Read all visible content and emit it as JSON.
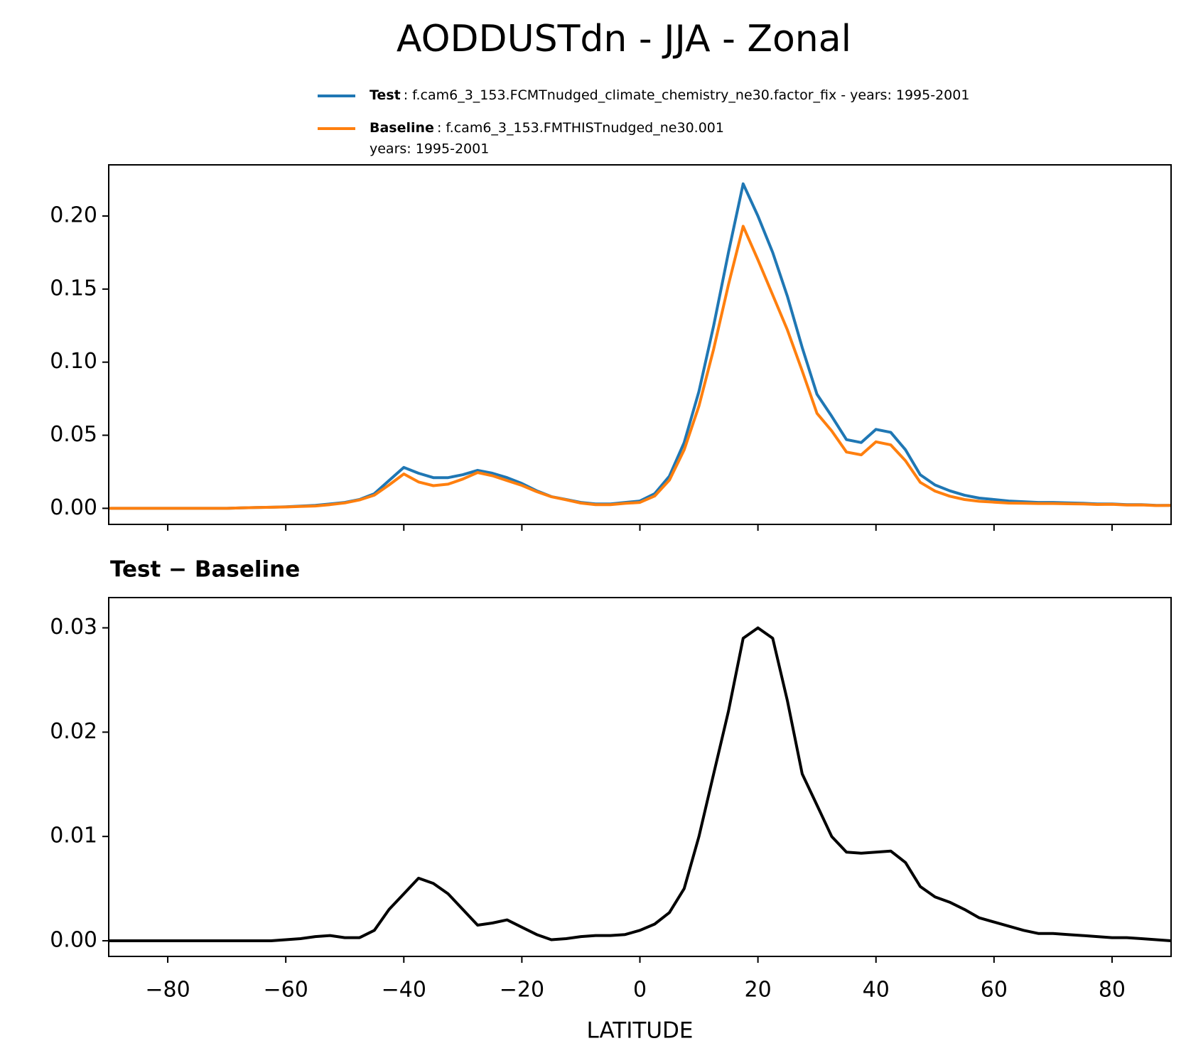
{
  "title": "AODDUSTdn - JJA - Zonal",
  "chart_data": [
    {
      "type": "line",
      "x": [
        -90,
        -87.5,
        -85,
        -82.5,
        -80,
        -77.5,
        -75,
        -72.5,
        -70,
        -67.5,
        -65,
        -62.5,
        -60,
        -57.5,
        -55,
        -52.5,
        -50,
        -47.5,
        -45,
        -42.5,
        -40,
        -37.5,
        -35,
        -32.5,
        -30,
        -27.5,
        -25,
        -22.5,
        -20,
        -17.5,
        -15,
        -12.5,
        -10,
        -7.5,
        -5,
        -2.5,
        0,
        2.5,
        5,
        7.5,
        10,
        12.5,
        15,
        17.5,
        20,
        22.5,
        25,
        27.5,
        30,
        32.5,
        35,
        37.5,
        40,
        42.5,
        45,
        47.5,
        50,
        52.5,
        55,
        57.5,
        60,
        62.5,
        65,
        67.5,
        70,
        72.5,
        75,
        77.5,
        80,
        82.5,
        85,
        87.5,
        90
      ],
      "series": [
        {
          "name": "Test",
          "description": [
            ": f.cam6_3_153.FCMTnudged_climate_chemistry_ne30.factor_fix - years: 1995-2001"
          ],
          "color": "#1f77b4",
          "values": [
            0,
            0,
            0,
            0,
            0,
            0,
            0,
            0,
            0,
            0.0003,
            0.0005,
            0.0007,
            0.001,
            0.0015,
            0.002,
            0.003,
            0.004,
            0.006,
            0.01,
            0.019,
            0.028,
            0.024,
            0.021,
            0.021,
            0.023,
            0.026,
            0.024,
            0.021,
            0.017,
            0.012,
            0.008,
            0.006,
            0.004,
            0.003,
            0.003,
            0.004,
            0.005,
            0.01,
            0.022,
            0.045,
            0.08,
            0.125,
            0.175,
            0.222,
            0.2,
            0.175,
            0.145,
            0.11,
            0.078,
            0.063,
            0.047,
            0.045,
            0.054,
            0.052,
            0.04,
            0.023,
            0.016,
            0.012,
            0.009,
            0.007,
            0.006,
            0.005,
            0.0045,
            0.004,
            0.004,
            0.0037,
            0.0035,
            0.003,
            0.003,
            0.0025,
            0.0025,
            0.002,
            0.002
          ]
        },
        {
          "name": "Baseline",
          "description": [
            ": f.cam6_3_153.FMTHISTnudged_ne30.001",
            "years: 1995-2001"
          ],
          "color": "#ff7f0e",
          "values": [
            0,
            0,
            0,
            0,
            0,
            0,
            0,
            0,
            0,
            0.0003,
            0.0005,
            0.0007,
            0.0009,
            0.0013,
            0.0016,
            0.0025,
            0.0037,
            0.0057,
            0.009,
            0.016,
            0.0235,
            0.018,
            0.0155,
            0.0165,
            0.02,
            0.0245,
            0.0223,
            0.019,
            0.0157,
            0.0114,
            0.0079,
            0.0058,
            0.0036,
            0.0025,
            0.0025,
            0.0034,
            0.004,
            0.0084,
            0.0193,
            0.04,
            0.07,
            0.109,
            0.153,
            0.193,
            0.17,
            0.146,
            0.122,
            0.094,
            0.065,
            0.053,
            0.0385,
            0.0366,
            0.0455,
            0.0434,
            0.0325,
            0.0178,
            0.0118,
            0.0083,
            0.006,
            0.0048,
            0.0042,
            0.0036,
            0.0035,
            0.0033,
            0.0033,
            0.0031,
            0.003,
            0.0026,
            0.0027,
            0.0022,
            0.0023,
            0.0019,
            0.002
          ]
        }
      ],
      "xlim": [
        -90,
        90
      ],
      "xticks": [
        -80,
        -60,
        -40,
        -20,
        0,
        20,
        40,
        60,
        80
      ],
      "ylim": [
        -0.011,
        0.235
      ],
      "yticks": [
        {
          "value": 0,
          "label": "0.00"
        },
        0.05,
        {
          "value": 0.1,
          "label": "0.10"
        },
        0.15,
        {
          "value": 0.2,
          "label": "0.20"
        }
      ]
    },
    {
      "type": "line",
      "title": "Test − Baseline",
      "xlabel": "LATITUDE",
      "x": [
        -90,
        -87.5,
        -85,
        -82.5,
        -80,
        -77.5,
        -75,
        -72.5,
        -70,
        -67.5,
        -65,
        -62.5,
        -60,
        -57.5,
        -55,
        -52.5,
        -50,
        -47.5,
        -45,
        -42.5,
        -40,
        -37.5,
        -35,
        -32.5,
        -30,
        -27.5,
        -25,
        -22.5,
        -20,
        -17.5,
        -15,
        -12.5,
        -10,
        -7.5,
        -5,
        -2.5,
        0,
        2.5,
        5,
        7.5,
        10,
        12.5,
        15,
        17.5,
        20,
        22.5,
        25,
        27.5,
        30,
        32.5,
        35,
        37.5,
        40,
        42.5,
        45,
        47.5,
        50,
        52.5,
        55,
        57.5,
        60,
        62.5,
        65,
        67.5,
        70,
        72.5,
        75,
        77.5,
        80,
        82.5,
        85,
        87.5,
        90
      ],
      "series": [
        {
          "color": "#000000",
          "values": [
            0,
            0,
            0,
            0,
            0,
            0,
            0,
            0,
            0,
            0,
            0,
            0,
            0.0001,
            0.0002,
            0.0004,
            0.0005,
            0.0003,
            0.0003,
            0.001,
            0.003,
            0.0045,
            0.006,
            0.0055,
            0.0045,
            0.003,
            0.0015,
            0.0017,
            0.002,
            0.0013,
            0.0006,
            0.0001,
            0.0002,
            0.0004,
            0.0005,
            0.0005,
            0.0006,
            0.001,
            0.0016,
            0.0027,
            0.005,
            0.01,
            0.016,
            0.022,
            0.029,
            0.03,
            0.029,
            0.023,
            0.016,
            0.013,
            0.01,
            0.0085,
            0.0084,
            0.0085,
            0.0086,
            0.0075,
            0.0052,
            0.0042,
            0.0037,
            0.003,
            0.0022,
            0.0018,
            0.0014,
            0.001,
            0.0007,
            0.0007,
            0.0006,
            0.0005,
            0.0004,
            0.0003,
            0.0003,
            0.0002,
            0.0001,
            0
          ]
        }
      ],
      "xlim": [
        -90,
        90
      ],
      "xticks": [
        {
          "value": -80,
          "label": "−80"
        },
        {
          "value": -60,
          "label": "−60"
        },
        {
          "value": -40,
          "label": "−40"
        },
        {
          "value": -20,
          "label": "−20"
        },
        0,
        20,
        40,
        60,
        80
      ],
      "ylim": [
        -0.0015,
        0.0329
      ],
      "yticks": [
        {
          "value": 0,
          "label": "0.00"
        },
        0.01,
        0.02,
        0.03
      ]
    }
  ]
}
